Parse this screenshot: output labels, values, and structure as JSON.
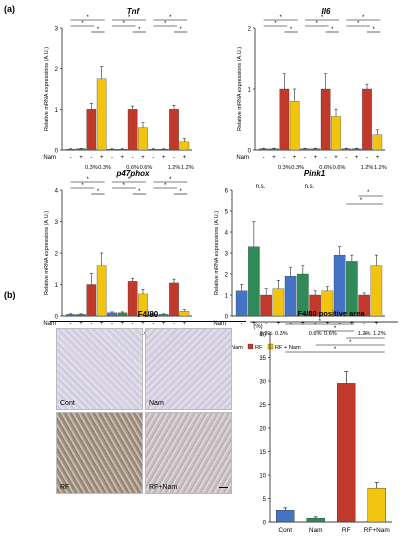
{
  "panel_a_label": "(a)",
  "panel_b_label": "(b)",
  "ylabel": "Relative mRNA expressions (A.U.)",
  "nam_row_label": "Nam",
  "legend": [
    {
      "name": "Cont",
      "color": "#4472c4"
    },
    {
      "name": "Nam",
      "color": "#2e8b57"
    },
    {
      "name": "RF",
      "color": "#c0392b"
    },
    {
      "name": "RF + Nam",
      "color": "#f1c40f"
    }
  ],
  "chart_data": [
    {
      "type": "bar",
      "title": "Tnf",
      "ylim": [
        0,
        3
      ],
      "yticks": [
        "0",
        "1",
        "2",
        "3"
      ],
      "group_labels": [
        "0.3%",
        "0.3%",
        "0.6%",
        "0.6%",
        "1.2%",
        "1.2%"
      ],
      "nam_signs": [
        "-",
        "+",
        "-",
        "+",
        "-",
        "+",
        "-",
        "+",
        "-",
        "+",
        "-",
        "+"
      ],
      "colors": [
        "#4472c4",
        "#2e8b57",
        "#c0392b",
        "#f1c40f",
        "#4472c4",
        "#2e8b57",
        "#c0392b",
        "#f1c40f",
        "#4472c4",
        "#2e8b57",
        "#c0392b",
        "#f1c40f"
      ],
      "values": [
        0.02,
        0.03,
        1.0,
        1.75,
        0.02,
        0.02,
        1.0,
        0.55,
        0.02,
        0.02,
        1.0,
        0.2
      ],
      "errors": [
        0.01,
        0.01,
        0.15,
        0.3,
        0.01,
        0.01,
        0.08,
        0.12,
        0.01,
        0.01,
        0.1,
        0.08
      ],
      "sig": [
        "*",
        "*",
        "*",
        "*",
        "*",
        "*",
        "*",
        "*",
        "*"
      ]
    },
    {
      "type": "bar",
      "title": "Il6",
      "ylim": [
        0,
        2
      ],
      "yticks": [
        "0",
        "1",
        "2"
      ],
      "group_labels": [
        "0.3%",
        "0.3%",
        "0.6%",
        "0.6%",
        "1.2%",
        "1.2%"
      ],
      "nam_signs": [
        "-",
        "+",
        "-",
        "+",
        "-",
        "+",
        "-",
        "+",
        "-",
        "+",
        "-",
        "+"
      ],
      "colors": [
        "#4472c4",
        "#2e8b57",
        "#c0392b",
        "#f1c40f",
        "#4472c4",
        "#2e8b57",
        "#c0392b",
        "#f1c40f",
        "#4472c4",
        "#2e8b57",
        "#c0392b",
        "#f1c40f"
      ],
      "values": [
        0.02,
        0.02,
        1.0,
        0.8,
        0.02,
        0.02,
        1.0,
        0.55,
        0.02,
        0.02,
        1.0,
        0.25
      ],
      "errors": [
        0.01,
        0.01,
        0.25,
        0.2,
        0.01,
        0.01,
        0.25,
        0.12,
        0.01,
        0.01,
        0.08,
        0.08
      ],
      "sig": [
        "*",
        "*",
        "*",
        "*",
        "*",
        "*",
        "*",
        "*",
        "*"
      ]
    },
    {
      "type": "bar",
      "title": "p47phox",
      "ylim": [
        0,
        4
      ],
      "yticks": [
        "0",
        "1",
        "2",
        "3",
        "4"
      ],
      "group_labels": [
        "0.3%",
        "0.3%",
        "0.6%",
        "0.6%",
        "1.2%",
        "1.2%"
      ],
      "nam_signs": [
        "-",
        "+",
        "-",
        "+",
        "-",
        "+",
        "-",
        "+",
        "-",
        "+",
        "-",
        "+"
      ],
      "colors": [
        "#4472c4",
        "#2e8b57",
        "#c0392b",
        "#f1c40f",
        "#4472c4",
        "#2e8b57",
        "#c0392b",
        "#f1c40f",
        "#4472c4",
        "#2e8b57",
        "#c0392b",
        "#f1c40f"
      ],
      "values": [
        0.05,
        0.05,
        1.0,
        1.6,
        0.1,
        0.1,
        1.1,
        0.7,
        0.05,
        0.05,
        1.05,
        0.15
      ],
      "errors": [
        0.02,
        0.02,
        0.35,
        0.4,
        0.03,
        0.03,
        0.1,
        0.15,
        0.02,
        0.02,
        0.12,
        0.05
      ],
      "sig": [
        "*",
        "*",
        "*",
        "*",
        "*",
        "*",
        "*",
        "*",
        "*"
      ]
    },
    {
      "type": "bar",
      "title": "Pink1",
      "ylim": [
        0,
        6
      ],
      "yticks": [
        "0",
        "1",
        "2",
        "3",
        "4",
        "5",
        "6"
      ],
      "group_labels": [
        "0.3%",
        "0.3%",
        "0.6%",
        "0.6%",
        "1.2%",
        "1.2%"
      ],
      "nam_signs": [
        "-",
        "+",
        "-",
        "+",
        "-",
        "+",
        "-",
        "+",
        "-",
        "+",
        "-",
        "+"
      ],
      "colors": [
        "#4472c4",
        "#2e8b57",
        "#c0392b",
        "#f1c40f",
        "#4472c4",
        "#2e8b57",
        "#c0392b",
        "#f1c40f",
        "#4472c4",
        "#2e8b57",
        "#c0392b",
        "#f1c40f"
      ],
      "values": [
        1.2,
        3.3,
        1.0,
        1.3,
        1.9,
        2.0,
        1.0,
        1.2,
        2.9,
        2.6,
        1.0,
        2.4
      ],
      "errors": [
        0.3,
        1.2,
        0.3,
        0.4,
        0.4,
        0.4,
        0.2,
        0.2,
        0.4,
        0.3,
        0.1,
        0.5
      ],
      "ns": [
        "n.s.",
        "n.s."
      ],
      "sig": [
        "*",
        "*"
      ]
    },
    {
      "type": "bar",
      "title": "F4/80 positive area",
      "ylabel": "(%)",
      "ylim": [
        0,
        40
      ],
      "yticks": [
        "0",
        "5",
        "10",
        "15",
        "20",
        "25",
        "30",
        "35",
        "40"
      ],
      "categories": [
        "Cont",
        "Nam",
        "RF",
        "RF+Nam"
      ],
      "colors": [
        "#4472c4",
        "#2e8b57",
        "#c0392b",
        "#f1c40f"
      ],
      "values": [
        2.5,
        0.8,
        29.5,
        7.2
      ],
      "errors": [
        0.5,
        0.3,
        2.5,
        1.2
      ],
      "sig": [
        "*",
        "*",
        "*",
        "*",
        "*"
      ]
    }
  ],
  "micrograph_panel": {
    "title": "F4/80",
    "labels": [
      "Cont",
      "Nam",
      "RF",
      "RF+Nam"
    ]
  }
}
